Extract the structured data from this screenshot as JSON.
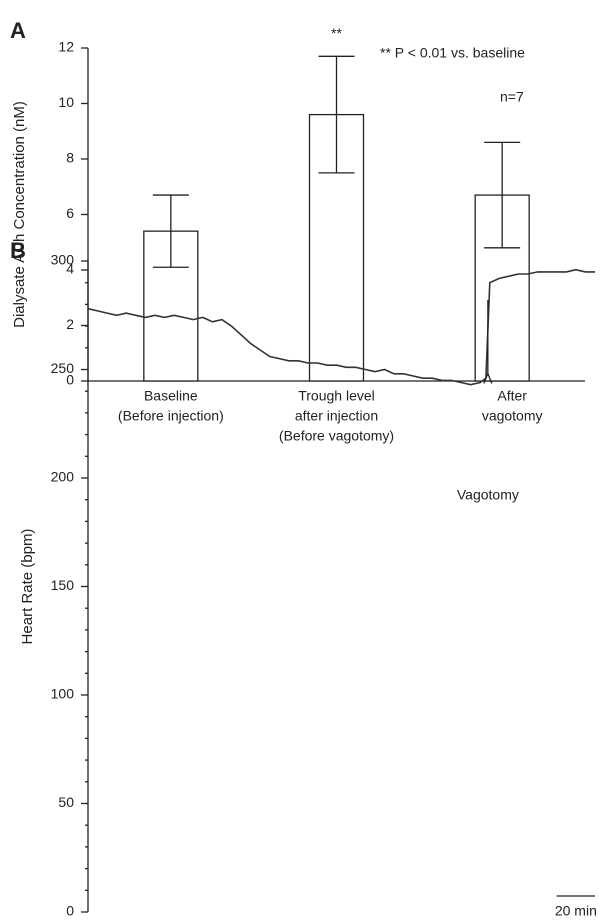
{
  "chart_data": [
    {
      "type": "bar",
      "panel": "A",
      "ylabel": "Dialysate ACh Concentration (nM)",
      "categories": [
        [
          "Baseline",
          "(Before injection)"
        ],
        [
          "Trough level",
          "after injection",
          "(Before vagotomy)"
        ],
        [
          "After",
          "vagotomy"
        ]
      ],
      "values": [
        5.4,
        9.6,
        6.7
      ],
      "errors": [
        1.3,
        2.1,
        1.9
      ],
      "value_labels": [
        null,
        "**",
        null
      ],
      "legend_note": "** P < 0.01 vs. baseline",
      "n_note": "n=7",
      "color": "#ffffff",
      "ylim": [
        0,
        12
      ],
      "yticks": [
        0,
        2,
        4,
        6,
        8,
        10,
        12
      ]
    },
    {
      "type": "line",
      "panel": "B",
      "ylabel": "Heart Rate (bpm)",
      "x": [
        0,
        5,
        10,
        15,
        20,
        25,
        30,
        35,
        40,
        45,
        50,
        55,
        60,
        65,
        70,
        75,
        80,
        85,
        90,
        95,
        100,
        105,
        110,
        115,
        120,
        125,
        130,
        135,
        140,
        145,
        150,
        155,
        160,
        165,
        170,
        175,
        180,
        185,
        190,
        195,
        200,
        205,
        208,
        210,
        215,
        220,
        225,
        230,
        235,
        240,
        245,
        250,
        255,
        260,
        265
      ],
      "series": [
        {
          "name": "Heart Rate",
          "color": "#333333",
          "values": [
            278,
            277,
            276,
            275,
            276,
            275,
            274,
            275,
            274,
            275,
            274,
            273,
            274,
            272,
            273,
            270,
            266,
            262,
            259,
            256,
            255,
            254,
            254,
            253,
            253,
            252,
            252,
            251,
            251,
            250,
            249,
            250,
            248,
            248,
            247,
            246,
            246,
            245,
            245,
            244,
            243,
            244,
            246,
            290,
            292,
            293,
            294,
            294,
            295,
            295,
            295,
            295,
            296,
            295,
            295
          ]
        }
      ],
      "annotation": {
        "text": "Vagotomy",
        "x": 209
      },
      "scale_bar": {
        "value": 20,
        "label": "20 min"
      },
      "xlim": [
        0,
        265
      ],
      "ylim": [
        0,
        300
      ],
      "yticks": [
        0,
        50,
        100,
        150,
        200,
        250,
        300
      ],
      "minor_yticks": [
        10,
        20,
        30,
        40,
        60,
        70,
        80,
        90,
        110,
        120,
        130,
        140,
        160,
        170,
        180,
        190,
        210,
        220,
        230,
        240,
        260,
        270,
        280,
        290
      ]
    }
  ]
}
